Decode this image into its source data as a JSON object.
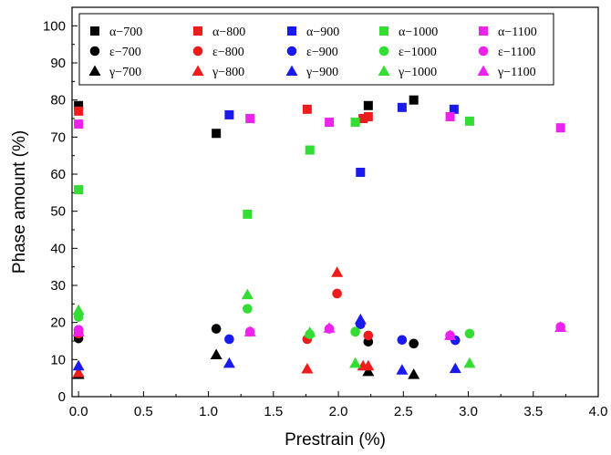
{
  "chart_data": {
    "type": "scatter",
    "xlabel": "Prestrain (%)",
    "ylabel": "Phase amount (%)",
    "xlim": [
      -0.05,
      4.0
    ],
    "ylim": [
      0,
      105
    ],
    "xticks": [
      "0.0",
      "0.5",
      "1.0",
      "1.5",
      "2.0",
      "2.5",
      "3.0",
      "3.5",
      "4.0"
    ],
    "yticks": [
      "0",
      "10",
      "20",
      "30",
      "40",
      "50",
      "60",
      "70",
      "80",
      "90",
      "100"
    ],
    "legend_position": "top",
    "series": [
      {
        "name": "α−700",
        "marker": "square",
        "color": "#000000",
        "points": [
          [
            0.0,
            78.5
          ],
          [
            1.06,
            71
          ],
          [
            2.23,
            78.5
          ],
          [
            2.58,
            80
          ]
        ]
      },
      {
        "name": "α−800",
        "marker": "square",
        "color": "#ee1c1c",
        "points": [
          [
            0.0,
            77
          ],
          [
            1.76,
            77.5
          ],
          [
            2.19,
            75
          ],
          [
            2.23,
            75.5
          ]
        ]
      },
      {
        "name": "α−900",
        "marker": "square",
        "color": "#1a1aee",
        "points": [
          [
            1.16,
            76
          ],
          [
            2.17,
            60.5
          ],
          [
            2.49,
            78
          ],
          [
            2.89,
            77.5
          ]
        ]
      },
      {
        "name": "α−1000",
        "marker": "square",
        "color": "#33dd33",
        "points": [
          [
            0.0,
            55.8
          ],
          [
            1.3,
            49.2
          ],
          [
            1.78,
            66.5
          ],
          [
            2.13,
            74
          ],
          [
            3.01,
            74.3
          ]
        ]
      },
      {
        "name": "α−1100",
        "marker": "square",
        "color": "#ee22ee",
        "points": [
          [
            0.0,
            73.5
          ],
          [
            1.32,
            75
          ],
          [
            1.93,
            74
          ],
          [
            2.86,
            75.5
          ],
          [
            3.71,
            72.5
          ]
        ]
      },
      {
        "name": "ε−700",
        "marker": "circle",
        "color": "#000000",
        "points": [
          [
            0.0,
            15.7
          ],
          [
            1.06,
            18.3
          ],
          [
            2.23,
            14.8
          ],
          [
            2.58,
            14.3
          ]
        ]
      },
      {
        "name": "ε−800",
        "marker": "circle",
        "color": "#ee1c1c",
        "points": [
          [
            0.0,
            17
          ],
          [
            1.76,
            15.5
          ],
          [
            1.99,
            27.8
          ],
          [
            2.23,
            16.5
          ]
        ]
      },
      {
        "name": "ε−900",
        "marker": "circle",
        "color": "#1a1aee",
        "points": [
          [
            0.0,
            18
          ],
          [
            1.16,
            15.5
          ],
          [
            2.17,
            19.5
          ],
          [
            2.49,
            15.3
          ],
          [
            2.9,
            15.2
          ]
        ]
      },
      {
        "name": "ε−1000",
        "marker": "circle",
        "color": "#33dd33",
        "points": [
          [
            0.0,
            21.5
          ],
          [
            1.3,
            23.7
          ],
          [
            1.78,
            16.8
          ],
          [
            2.13,
            17.5
          ],
          [
            3.01,
            17
          ]
        ]
      },
      {
        "name": "ε−1100",
        "marker": "circle",
        "color": "#ee22ee",
        "points": [
          [
            0.0,
            18
          ],
          [
            1.32,
            17.5
          ],
          [
            1.93,
            18.3
          ],
          [
            2.86,
            16.5
          ],
          [
            3.71,
            18.8
          ]
        ]
      },
      {
        "name": "γ−700",
        "marker": "triangle",
        "color": "#000000",
        "points": [
          [
            0.0,
            6
          ],
          [
            1.06,
            11.3
          ],
          [
            2.23,
            6.8
          ],
          [
            2.58,
            6
          ]
        ]
      },
      {
        "name": "γ−800",
        "marker": "triangle",
        "color": "#ee1c1c",
        "points": [
          [
            0.0,
            6.5
          ],
          [
            1.76,
            7.5
          ],
          [
            1.99,
            33.5
          ],
          [
            2.19,
            8.3
          ],
          [
            2.23,
            8.3
          ]
        ]
      },
      {
        "name": "γ−900",
        "marker": "triangle",
        "color": "#1a1aee",
        "points": [
          [
            0.0,
            8.3
          ],
          [
            1.16,
            9
          ],
          [
            2.17,
            20.8
          ],
          [
            2.49,
            7.2
          ],
          [
            2.9,
            7.6
          ]
        ]
      },
      {
        "name": "γ−1000",
        "marker": "triangle",
        "color": "#33dd33",
        "points": [
          [
            0.0,
            23.3
          ],
          [
            1.3,
            27.5
          ],
          [
            1.78,
            17.3
          ],
          [
            2.13,
            9
          ],
          [
            3.01,
            9
          ]
        ]
      },
      {
        "name": "γ−1100",
        "marker": "triangle",
        "color": "#ee22ee",
        "points": [
          [
            0.0,
            17.5
          ],
          [
            1.32,
            17.5
          ],
          [
            1.93,
            18.5
          ],
          [
            2.86,
            16.5
          ],
          [
            3.71,
            18.7
          ]
        ]
      }
    ]
  }
}
